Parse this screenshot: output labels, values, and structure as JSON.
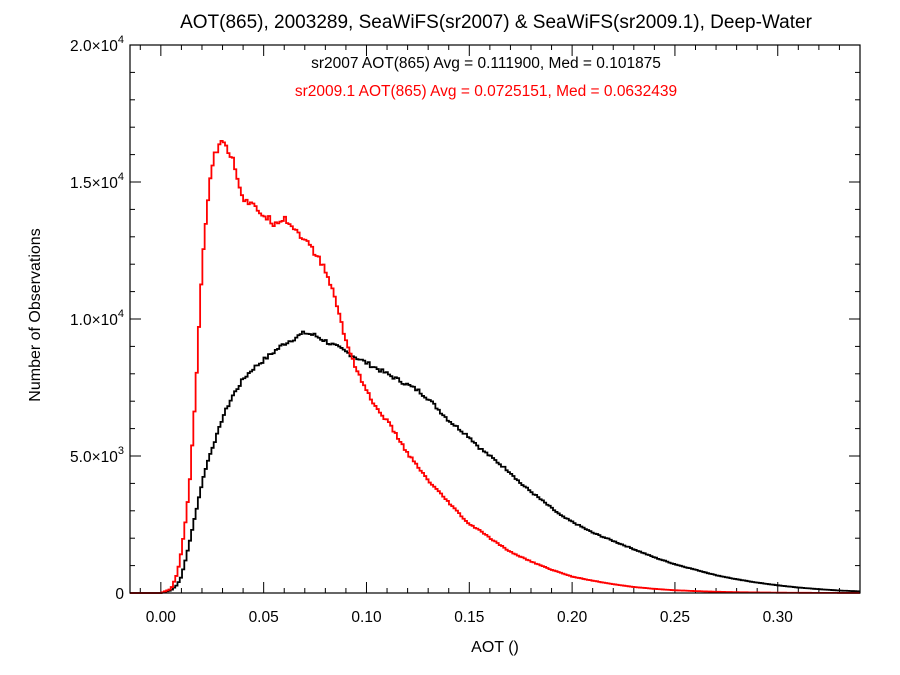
{
  "chart_data": {
    "type": "line",
    "title": "AOT(865), 2003289, SeaWiFS(sr2007) & SeaWiFS(sr2009.1), Deep-Water",
    "xlabel": "AOT ()",
    "ylabel": "Number of Observations",
    "xlim": [
      -0.015,
      0.34
    ],
    "ylim": [
      0,
      20000
    ],
    "grid": false,
    "x_ticks": [
      {
        "value": 0.0,
        "label": "0.00"
      },
      {
        "value": 0.05,
        "label": "0.05"
      },
      {
        "value": 0.1,
        "label": "0.10"
      },
      {
        "value": 0.15,
        "label": "0.15"
      },
      {
        "value": 0.2,
        "label": "0.20"
      },
      {
        "value": 0.25,
        "label": "0.25"
      },
      {
        "value": 0.3,
        "label": "0.30"
      }
    ],
    "y_ticks": [
      {
        "value": 0,
        "mant": "0",
        "exp": ""
      },
      {
        "value": 5000,
        "mant": "5.0×10",
        "exp": "3"
      },
      {
        "value": 10000,
        "mant": "1.0×10",
        "exp": "4"
      },
      {
        "value": 15000,
        "mant": "1.5×10",
        "exp": "4"
      },
      {
        "value": 20000,
        "mant": "2.0×10",
        "exp": "4"
      }
    ],
    "annotations": [
      {
        "text": "sr2007 AOT(865) Avg = 0.111900, Med = 0.101875",
        "color": "#000000"
      },
      {
        "text": "sr2009.1 AOT(865) Avg = 0.0725151, Med = 0.0632439",
        "color": "#ff0000"
      }
    ],
    "series": [
      {
        "color": "#000000",
        "x": [
          -0.015,
          0.0,
          0.005,
          0.008,
          0.01,
          0.012,
          0.015,
          0.018,
          0.02,
          0.022,
          0.025,
          0.028,
          0.03,
          0.035,
          0.04,
          0.045,
          0.05,
          0.055,
          0.06,
          0.065,
          0.07,
          0.075,
          0.08,
          0.085,
          0.09,
          0.095,
          0.1,
          0.105,
          0.11,
          0.115,
          0.12,
          0.125,
          0.13,
          0.135,
          0.14,
          0.145,
          0.15,
          0.155,
          0.16,
          0.165,
          0.17,
          0.175,
          0.18,
          0.185,
          0.19,
          0.195,
          0.2,
          0.21,
          0.22,
          0.23,
          0.24,
          0.25,
          0.26,
          0.27,
          0.28,
          0.29,
          0.3,
          0.31,
          0.32,
          0.33,
          0.34
        ],
        "y": [
          0,
          0,
          100,
          300,
          600,
          1200,
          2200,
          3300,
          4000,
          4600,
          5300,
          5900,
          6400,
          7200,
          7800,
          8200,
          8500,
          8800,
          9100,
          9300,
          9500,
          9400,
          9200,
          9000,
          8800,
          8600,
          8400,
          8200,
          8000,
          7800,
          7600,
          7400,
          7100,
          6700,
          6300,
          6000,
          5700,
          5300,
          5000,
          4700,
          4400,
          4000,
          3700,
          3400,
          3100,
          2800,
          2600,
          2200,
          1900,
          1600,
          1300,
          1050,
          850,
          650,
          500,
          380,
          280,
          200,
          140,
          90,
          60
        ]
      },
      {
        "color": "#ff0000",
        "x": [
          -0.015,
          0.0,
          0.005,
          0.008,
          0.01,
          0.012,
          0.014,
          0.016,
          0.018,
          0.02,
          0.022,
          0.024,
          0.026,
          0.028,
          0.03,
          0.032,
          0.035,
          0.038,
          0.04,
          0.045,
          0.05,
          0.055,
          0.06,
          0.065,
          0.07,
          0.075,
          0.08,
          0.085,
          0.09,
          0.095,
          0.1,
          0.105,
          0.11,
          0.115,
          0.12,
          0.125,
          0.13,
          0.135,
          0.14,
          0.145,
          0.15,
          0.155,
          0.16,
          0.165,
          0.17,
          0.18,
          0.19,
          0.2,
          0.21,
          0.22,
          0.23,
          0.24,
          0.25,
          0.26,
          0.27,
          0.28,
          0.29,
          0.3,
          0.31,
          0.32,
          0.33,
          0.34
        ],
        "y": [
          0,
          0,
          150,
          700,
          1500,
          2600,
          4000,
          6200,
          8800,
          11800,
          13700,
          15200,
          15900,
          16300,
          16700,
          16300,
          15800,
          15000,
          14400,
          14100,
          13800,
          13500,
          13700,
          13300,
          12900,
          12400,
          11800,
          10700,
          9200,
          8200,
          7400,
          6700,
          6300,
          5700,
          5100,
          4600,
          4100,
          3700,
          3300,
          2900,
          2500,
          2300,
          2000,
          1750,
          1500,
          1150,
          850,
          600,
          450,
          320,
          220,
          150,
          100,
          70,
          45,
          30,
          20,
          12,
          8,
          5,
          3,
          2
        ]
      }
    ]
  }
}
